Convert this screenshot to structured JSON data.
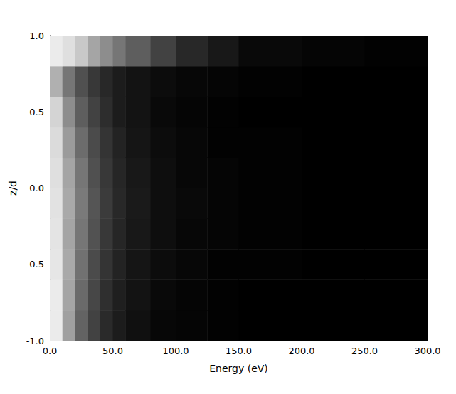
{
  "chart_data": {
    "type": "heatmap",
    "x_label": "Energy (eV)",
    "y_label": "z/d",
    "xlim": [
      0,
      300
    ],
    "ylim": [
      -1,
      1
    ],
    "xticks": [
      {
        "value": 0,
        "label": "0.0"
      },
      {
        "value": 50,
        "label": "50.0"
      },
      {
        "value": 100,
        "label": "100.0"
      },
      {
        "value": 150,
        "label": "150.0"
      },
      {
        "value": 200,
        "label": "200.0"
      },
      {
        "value": 250,
        "label": "250.0"
      },
      {
        "value": 300,
        "label": "300.0"
      }
    ],
    "yticks": [
      {
        "value": -1,
        "label": "-1.0"
      },
      {
        "value": -0.5,
        "label": "-0.5"
      },
      {
        "value": 0,
        "label": "0.0"
      },
      {
        "value": 0.5,
        "label": "0.5"
      },
      {
        "value": 1,
        "label": "1.0"
      }
    ],
    "x_edges": [
      0,
      10,
      20,
      30,
      40,
      50,
      60,
      80,
      100,
      125,
      150,
      200,
      250,
      300
    ],
    "y_edges": [
      -1,
      -0.8,
      -0.6,
      -0.4,
      -0.2,
      0,
      0.2,
      0.4,
      0.6,
      0.8,
      1
    ],
    "zlim": [
      0,
      1
    ],
    "z_values": [
      [
        1.0,
        0.68,
        0.42,
        0.28,
        0.18,
        0.12,
        0.07,
        0.03,
        0.02,
        0.01,
        0.0,
        0.0,
        0.0
      ],
      [
        1.0,
        0.7,
        0.45,
        0.3,
        0.2,
        0.13,
        0.08,
        0.04,
        0.02,
        0.01,
        0.0,
        0.0,
        0.0
      ],
      [
        0.98,
        0.72,
        0.48,
        0.32,
        0.22,
        0.15,
        0.09,
        0.05,
        0.03,
        0.01,
        0.01,
        0.0,
        0.0
      ],
      [
        0.97,
        0.7,
        0.5,
        0.35,
        0.24,
        0.16,
        0.1,
        0.06,
        0.03,
        0.02,
        0.01,
        0.0,
        0.0
      ],
      [
        0.96,
        0.72,
        0.52,
        0.36,
        0.25,
        0.17,
        0.11,
        0.06,
        0.04,
        0.02,
        0.01,
        0.0,
        0.0
      ],
      [
        0.95,
        0.7,
        0.5,
        0.34,
        0.24,
        0.16,
        0.1,
        0.06,
        0.03,
        0.02,
        0.01,
        0.0,
        0.0
      ],
      [
        0.93,
        0.66,
        0.46,
        0.32,
        0.22,
        0.15,
        0.09,
        0.05,
        0.03,
        0.01,
        0.01,
        0.0,
        0.0
      ],
      [
        0.9,
        0.6,
        0.4,
        0.28,
        0.19,
        0.12,
        0.08,
        0.04,
        0.02,
        0.01,
        0.0,
        0.0,
        0.0
      ],
      [
        0.75,
        0.5,
        0.34,
        0.24,
        0.17,
        0.12,
        0.08,
        0.05,
        0.03,
        0.02,
        0.01,
        0.0,
        0.0
      ],
      [
        1.0,
        0.95,
        0.85,
        0.7,
        0.6,
        0.5,
        0.4,
        0.28,
        0.17,
        0.1,
        0.04,
        0.02,
        0.01
      ]
    ]
  }
}
